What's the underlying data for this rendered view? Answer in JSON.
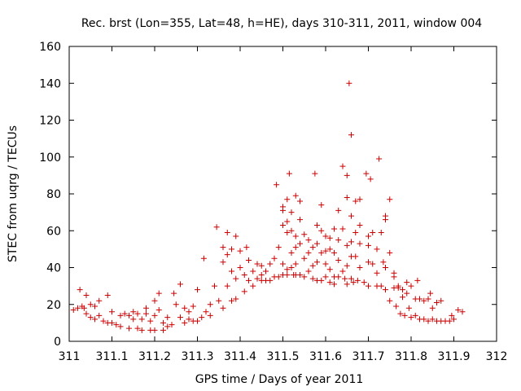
{
  "chart_data": {
    "type": "scatter",
    "title": "Rec. brst (Lon=355, Lat=48, h=HE), days 310-311, 2011, window 004",
    "xlabel": "GPS time / Days of year 2011",
    "ylabel": "STEC from uqrg / TECUs",
    "xlim": [
      311,
      312
    ],
    "ylim": [
      0,
      160
    ],
    "xticks": [
      311,
      311.1,
      311.2,
      311.3,
      311.4,
      311.5,
      311.6,
      311.7,
      311.8,
      311.9,
      312
    ],
    "xtick_labels": [
      "311",
      "311.1",
      "311.2",
      "311.3",
      "311.4",
      "311.5",
      "311.6",
      "311.7",
      "311.8",
      "311.9",
      "312"
    ],
    "yticks": [
      0,
      20,
      40,
      60,
      80,
      100,
      120,
      140,
      160
    ],
    "ytick_labels": [
      "0",
      "20",
      "40",
      "60",
      "80",
      "100",
      "120",
      "140",
      "160"
    ],
    "marker": "+",
    "marker_color": "#cc0000",
    "grid": false,
    "series": [
      {
        "name": "STEC",
        "points": [
          [
            311.01,
            17
          ],
          [
            311.02,
            18
          ],
          [
            311.025,
            28
          ],
          [
            311.03,
            19
          ],
          [
            311.035,
            18
          ],
          [
            311.04,
            25
          ],
          [
            311.04,
            15
          ],
          [
            311.05,
            20
          ],
          [
            311.05,
            13
          ],
          [
            311.06,
            19
          ],
          [
            311.06,
            12
          ],
          [
            311.07,
            22
          ],
          [
            311.07,
            14
          ],
          [
            311.08,
            11
          ],
          [
            311.09,
            25
          ],
          [
            311.09,
            10
          ],
          [
            311.1,
            10
          ],
          [
            311.1,
            16
          ],
          [
            311.11,
            9
          ],
          [
            311.12,
            14
          ],
          [
            311.12,
            8
          ],
          [
            311.13,
            15
          ],
          [
            311.14,
            7
          ],
          [
            311.14,
            14
          ],
          [
            311.15,
            12
          ],
          [
            311.15,
            16
          ],
          [
            311.16,
            15
          ],
          [
            311.16,
            7
          ],
          [
            311.17,
            12
          ],
          [
            311.17,
            6
          ],
          [
            311.18,
            15
          ],
          [
            311.18,
            18
          ],
          [
            311.19,
            11
          ],
          [
            311.19,
            6
          ],
          [
            311.2,
            22
          ],
          [
            311.2,
            14
          ],
          [
            311.2,
            6
          ],
          [
            311.21,
            26
          ],
          [
            311.21,
            17
          ],
          [
            311.22,
            10
          ],
          [
            311.22,
            6
          ],
          [
            311.23,
            8
          ],
          [
            311.23,
            13
          ],
          [
            311.24,
            9
          ],
          [
            311.245,
            26
          ],
          [
            311.25,
            20
          ],
          [
            311.26,
            31
          ],
          [
            311.26,
            13
          ],
          [
            311.27,
            18
          ],
          [
            311.27,
            10
          ],
          [
            311.28,
            12
          ],
          [
            311.28,
            16
          ],
          [
            311.29,
            11
          ],
          [
            311.29,
            19
          ],
          [
            311.3,
            28
          ],
          [
            311.3,
            11
          ],
          [
            311.31,
            13
          ],
          [
            311.315,
            45
          ],
          [
            311.32,
            16
          ],
          [
            311.33,
            20
          ],
          [
            311.33,
            14
          ],
          [
            311.34,
            30
          ],
          [
            311.345,
            62
          ],
          [
            311.35,
            22
          ],
          [
            311.36,
            51
          ],
          [
            311.36,
            43
          ],
          [
            311.36,
            18
          ],
          [
            311.37,
            59
          ],
          [
            311.37,
            47
          ],
          [
            311.37,
            30
          ],
          [
            311.38,
            22
          ],
          [
            311.38,
            50
          ],
          [
            311.38,
            38
          ],
          [
            311.39,
            57
          ],
          [
            311.39,
            23
          ],
          [
            311.39,
            34
          ],
          [
            311.4,
            49
          ],
          [
            311.4,
            40
          ],
          [
            311.41,
            36
          ],
          [
            311.41,
            27
          ],
          [
            311.415,
            51
          ],
          [
            311.42,
            44
          ],
          [
            311.42,
            33
          ],
          [
            311.43,
            38
          ],
          [
            311.43,
            30
          ],
          [
            311.44,
            42
          ],
          [
            311.44,
            34
          ],
          [
            311.45,
            41
          ],
          [
            311.45,
            33
          ],
          [
            311.45,
            36
          ],
          [
            311.46,
            38
          ],
          [
            311.46,
            33
          ],
          [
            311.47,
            33
          ],
          [
            311.47,
            42
          ],
          [
            311.48,
            45
          ],
          [
            311.48,
            35
          ],
          [
            311.485,
            85
          ],
          [
            311.49,
            51
          ],
          [
            311.49,
            35
          ],
          [
            311.5,
            63
          ],
          [
            311.5,
            73
          ],
          [
            311.5,
            71
          ],
          [
            311.5,
            42
          ],
          [
            311.5,
            36
          ],
          [
            311.51,
            77
          ],
          [
            311.51,
            65
          ],
          [
            311.51,
            59
          ],
          [
            311.51,
            39
          ],
          [
            311.51,
            36
          ],
          [
            311.515,
            91
          ],
          [
            311.52,
            70
          ],
          [
            311.52,
            60
          ],
          [
            311.52,
            48
          ],
          [
            311.52,
            40
          ],
          [
            311.525,
            36
          ],
          [
            311.53,
            79
          ],
          [
            311.53,
            57
          ],
          [
            311.53,
            51
          ],
          [
            311.53,
            42
          ],
          [
            311.53,
            36
          ],
          [
            311.54,
            76
          ],
          [
            311.54,
            66
          ],
          [
            311.54,
            53
          ],
          [
            311.54,
            36
          ],
          [
            311.55,
            58
          ],
          [
            311.55,
            45
          ],
          [
            311.55,
            35
          ],
          [
            311.56,
            55
          ],
          [
            311.56,
            48
          ],
          [
            311.56,
            38
          ],
          [
            311.57,
            51
          ],
          [
            311.57,
            41
          ],
          [
            311.57,
            34
          ],
          [
            311.575,
            91
          ],
          [
            311.58,
            63
          ],
          [
            311.58,
            53
          ],
          [
            311.58,
            43
          ],
          [
            311.58,
            33
          ],
          [
            311.59,
            74
          ],
          [
            311.59,
            60
          ],
          [
            311.59,
            48
          ],
          [
            311.59,
            33
          ],
          [
            311.6,
            57
          ],
          [
            311.6,
            49
          ],
          [
            311.6,
            42
          ],
          [
            311.6,
            35
          ],
          [
            311.61,
            56
          ],
          [
            311.61,
            50
          ],
          [
            311.61,
            39
          ],
          [
            311.61,
            32
          ],
          [
            311.62,
            61
          ],
          [
            311.62,
            48
          ],
          [
            311.62,
            35
          ],
          [
            311.62,
            31
          ],
          [
            311.63,
            71
          ],
          [
            311.63,
            55
          ],
          [
            311.63,
            44
          ],
          [
            311.63,
            35
          ],
          [
            311.64,
            95
          ],
          [
            311.64,
            61
          ],
          [
            311.64,
            38
          ],
          [
            311.645,
            34
          ],
          [
            311.65,
            90
          ],
          [
            311.65,
            78
          ],
          [
            311.65,
            52
          ],
          [
            311.65,
            41
          ],
          [
            311.65,
            31
          ],
          [
            311.655,
            140
          ],
          [
            311.66,
            112
          ],
          [
            311.66,
            68
          ],
          [
            311.66,
            54
          ],
          [
            311.66,
            46
          ],
          [
            311.66,
            34
          ],
          [
            311.665,
            32
          ],
          [
            311.67,
            76
          ],
          [
            311.67,
            59
          ],
          [
            311.67,
            46
          ],
          [
            311.675,
            33
          ],
          [
            311.68,
            77
          ],
          [
            311.68,
            63
          ],
          [
            311.68,
            53
          ],
          [
            311.68,
            40
          ],
          [
            311.69,
            32
          ],
          [
            311.695,
            91
          ],
          [
            311.7,
            57
          ],
          [
            311.7,
            52
          ],
          [
            311.7,
            43
          ],
          [
            311.7,
            30
          ],
          [
            311.705,
            88
          ],
          [
            311.71,
            59
          ],
          [
            311.71,
            42
          ],
          [
            311.72,
            50
          ],
          [
            311.72,
            37
          ],
          [
            311.72,
            30
          ],
          [
            311.725,
            99
          ],
          [
            311.73,
            59
          ],
          [
            311.73,
            30
          ],
          [
            311.735,
            43
          ],
          [
            311.74,
            68
          ],
          [
            311.74,
            66
          ],
          [
            311.74,
            40
          ],
          [
            311.74,
            28
          ],
          [
            311.75,
            77
          ],
          [
            311.75,
            48
          ],
          [
            311.75,
            22
          ],
          [
            311.76,
            37
          ],
          [
            311.76,
            29
          ],
          [
            311.76,
            35
          ],
          [
            311.765,
            19
          ],
          [
            311.77,
            29
          ],
          [
            311.77,
            30
          ],
          [
            311.775,
            15
          ],
          [
            311.78,
            28
          ],
          [
            311.78,
            24
          ],
          [
            311.785,
            14
          ],
          [
            311.79,
            26
          ],
          [
            311.79,
            32
          ],
          [
            311.795,
            18
          ],
          [
            311.8,
            30
          ],
          [
            311.8,
            13
          ],
          [
            311.81,
            23
          ],
          [
            311.81,
            14
          ],
          [
            311.815,
            33
          ],
          [
            311.82,
            23
          ],
          [
            311.82,
            12
          ],
          [
            311.83,
            22
          ],
          [
            311.83,
            12
          ],
          [
            311.84,
            23
          ],
          [
            311.84,
            11
          ],
          [
            311.845,
            26
          ],
          [
            311.85,
            12
          ],
          [
            311.85,
            18
          ],
          [
            311.86,
            21
          ],
          [
            311.86,
            11
          ],
          [
            311.87,
            11
          ],
          [
            311.87,
            22
          ],
          [
            311.88,
            11
          ],
          [
            311.89,
            11
          ],
          [
            311.895,
            14
          ],
          [
            311.9,
            12
          ],
          [
            311.91,
            17
          ],
          [
            311.92,
            16
          ]
        ]
      }
    ]
  }
}
